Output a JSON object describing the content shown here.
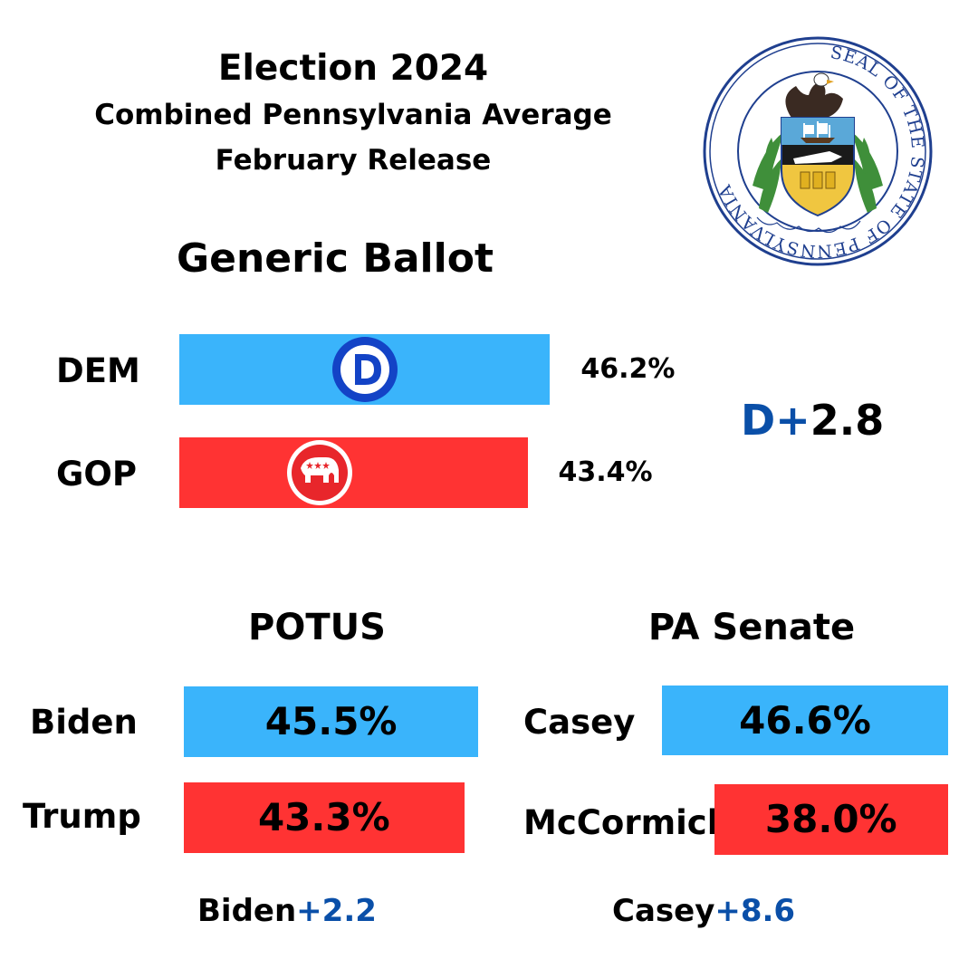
{
  "header": {
    "title": "Election 2024",
    "subtitle": "Combined Pennsylvania Average",
    "release": "February Release"
  },
  "seal": {
    "icon": "pennsylvania-state-seal-icon",
    "inscription": "SEAL OF THE STATE OF PENNSYLVANIA"
  },
  "colors": {
    "dem": "#3ab4fb",
    "rep": "#ff3333",
    "margin_blue": "#0a4fa8"
  },
  "chart_data": [
    {
      "type": "bar",
      "title": "Generic Ballot",
      "categories": [
        "DEM",
        "GOP"
      ],
      "values": [
        46.2,
        43.4
      ],
      "value_labels": [
        "46.2%",
        "43.4%"
      ],
      "icons": [
        "democratic-party-logo-icon",
        "republican-party-logo-icon"
      ],
      "margin": {
        "party": "D",
        "sign": "+",
        "value": "2.8"
      }
    },
    {
      "type": "bar",
      "title": "POTUS",
      "categories": [
        "Biden",
        "Trump"
      ],
      "values": [
        45.5,
        43.3
      ],
      "value_labels": [
        "45.5%",
        "43.3%"
      ],
      "margin": {
        "leader": "Biden",
        "value": "+2.2"
      }
    },
    {
      "type": "bar",
      "title": "PA Senate",
      "categories": [
        "Casey",
        "McCormick"
      ],
      "values": [
        46.6,
        38.0
      ],
      "value_labels": [
        "46.6%",
        "38.0%"
      ],
      "margin": {
        "leader": "Casey",
        "value": "+8.6"
      }
    }
  ]
}
